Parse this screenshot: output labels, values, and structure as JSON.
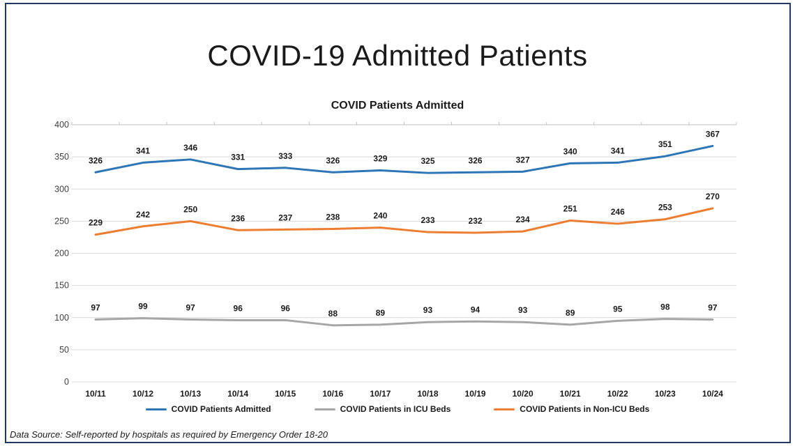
{
  "page": {
    "title": "COVID-19 Admitted Patients",
    "footer": "Data Source: Self-reported by hospitals as required by Emergency Order 18-20"
  },
  "chart_data": {
    "type": "line",
    "title": "COVID Patients Admitted",
    "categories": [
      "10/11",
      "10/12",
      "10/13",
      "10/14",
      "10/15",
      "10/16",
      "10/17",
      "10/18",
      "10/19",
      "10/20",
      "10/21",
      "10/22",
      "10/23",
      "10/24"
    ],
    "series": [
      {
        "name": "COVID Patients Admitted",
        "color": "#2e75b6",
        "values": [
          326,
          341,
          346,
          331,
          333,
          326,
          329,
          325,
          326,
          327,
          340,
          341,
          351,
          367
        ]
      },
      {
        "name": "COVID Patients in ICU Beds",
        "color": "#a6a6a6",
        "values": [
          97,
          99,
          97,
          96,
          96,
          88,
          89,
          93,
          94,
          93,
          89,
          95,
          98,
          97
        ]
      },
      {
        "name": "COVID Patients in Non-ICU Beds",
        "color": "#ed7d31",
        "values": [
          229,
          242,
          250,
          236,
          237,
          238,
          240,
          233,
          232,
          234,
          251,
          246,
          253,
          270
        ]
      }
    ],
    "ylim": [
      0,
      400
    ],
    "ytick_step": 50,
    "grid": true,
    "data_labels": true,
    "legend_position": "bottom"
  },
  "colors": {
    "page_border": "#1f3864",
    "gridline": "#d9d9d9",
    "top_axis_line": "#bfbfbf",
    "axis_label": "#404040",
    "data_label": "#1a1a1a"
  }
}
